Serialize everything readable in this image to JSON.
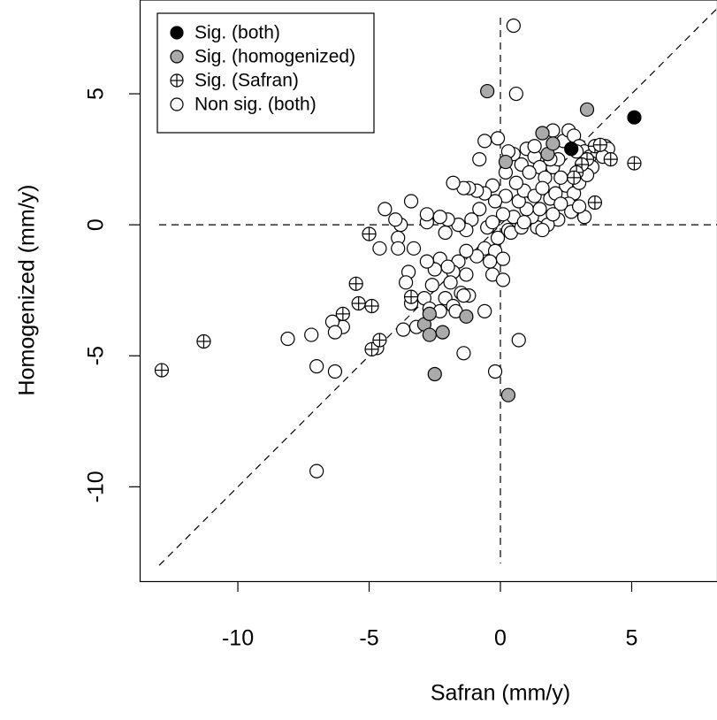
{
  "chart_data": {
    "type": "scatter",
    "xlabel": "Safran (mm/y)",
    "ylabel": "Homogenized (mm/y)",
    "xlim": [
      -13.74,
      8.25
    ],
    "ylim": [
      -13.6,
      8.58
    ],
    "xticks": [
      -10,
      -5,
      0,
      5
    ],
    "yticks": [
      -10,
      -5,
      0,
      5
    ],
    "hlines": [
      0
    ],
    "vlines": [
      0
    ],
    "abline": [
      0,
      1
    ],
    "legend": "topleft",
    "series": [
      {
        "name": "Sig. (both)",
        "color": "#000000",
        "marker": "circle",
        "x": [
          2.7,
          5.1
        ],
        "values": [
          2.9,
          4.1
        ]
      },
      {
        "name": "Sig. (homogenized)",
        "color": "#aaaaaa",
        "marker": "circle",
        "x": [
          -0.5,
          3.3,
          1.6,
          1.8,
          2.0,
          -2.9,
          -2.7,
          -2.7,
          -2.2,
          -1.3,
          -2.5,
          0.3,
          0.2
        ],
        "values": [
          5.1,
          4.4,
          3.5,
          2.7,
          3.1,
          -3.8,
          -3.4,
          -4.2,
          -4.1,
          -3.5,
          -5.7,
          -6.5,
          2.4
        ]
      },
      {
        "name": "Sig. (Safran)",
        "color": "#ffffff",
        "marker": "circle-plus",
        "x": [
          -12.9,
          -11.3,
          -5.5,
          -5.4,
          -6.0,
          -4.9,
          -5.0,
          -4.9,
          -4.6,
          -3.4,
          3.6,
          5.1,
          4.2,
          3.3,
          3.1,
          3.6,
          3.8,
          2.9,
          2.8
        ],
        "values": [
          -5.55,
          -4.45,
          -2.25,
          -3.0,
          -3.4,
          -3.1,
          -0.35,
          -4.75,
          -4.4,
          -2.75,
          0.85,
          2.35,
          2.5,
          2.5,
          2.3,
          3.0,
          3.05,
          2.0,
          1.8
        ]
      },
      {
        "name": "Non sig. (both)",
        "color": "#ffffff",
        "marker": "circle",
        "x": [
          0.5,
          0.6,
          -0.6,
          -0.1,
          -0.8,
          0.2,
          0.5,
          0.8,
          1.0,
          1.3,
          1.5,
          1.7,
          2.0,
          2.2,
          2.4,
          2.6,
          2.8,
          3.0,
          3.2,
          3.4,
          3.5,
          3.7,
          4.0,
          2.5,
          2.8,
          3.0,
          2.6,
          2.7,
          3.2,
          2.2,
          1.8,
          1.4,
          1.2,
          1.0,
          0.7,
          0.9,
          1.3,
          1.6,
          1.9,
          2.1,
          2.3,
          1.5,
          0.5,
          0.3,
          0.1,
          -0.1,
          0.4,
          0.8,
          0.6,
          0.2,
          -0.2,
          -0.3,
          -0.6,
          -0.9,
          -1.2,
          -1.4,
          -1.8,
          -0.8,
          -1.1,
          -1.3,
          -1.6,
          -2.0,
          -2.1,
          -2.3,
          -2.8,
          -2.8,
          -0.5,
          -0.6,
          -0.2,
          0.1,
          -0.4,
          -0.3,
          -0.9,
          -1.3,
          -1.6,
          -1.8,
          -1.3,
          -1.5,
          -1.2,
          -1.9,
          -2.1,
          -2.3,
          -2.0,
          -2.5,
          -2.6,
          -2.8,
          -2.9,
          -2.7,
          -2.3,
          -1.8,
          -1.4,
          -1.7,
          -0.6,
          -0.2,
          0.1,
          0.7,
          -1.4,
          -3.3,
          -3.4,
          -3.8,
          -3.9,
          -3.9,
          -3.5,
          -3.6,
          -3.4,
          -3.2,
          -3.7,
          -4.4,
          -4.6,
          -4.0,
          -4.7,
          -6.0,
          -6.4,
          -6.3,
          -7.2,
          -8.1,
          -7.0,
          -6.3,
          -7.0,
          -0.3,
          0.3,
          1.1,
          1.9,
          2.3,
          2.9,
          3.3,
          3.0,
          2.0,
          1.6,
          0.9,
          4.1,
          3.9,
          2.0,
          1.3
        ],
        "values": [
          7.6,
          5.0,
          3.2,
          3.3,
          2.5,
          2.0,
          2.7,
          2.3,
          2.9,
          2.6,
          2.2,
          1.8,
          2.2,
          2.5,
          3.2,
          3.6,
          3.4,
          3.0,
          2.8,
          2.6,
          2.2,
          2.8,
          3.0,
          1.5,
          1.2,
          1.6,
          0.8,
          0.5,
          0.3,
          0.2,
          0.0,
          -0.1,
          0.3,
          0.6,
          0.9,
          1.3,
          1.1,
          1.4,
          1.0,
          1.2,
          0.8,
          0.6,
          0.3,
          -0.2,
          0.4,
          -0.5,
          -0.3,
          -0.1,
          1.6,
          1.1,
          0.9,
          1.5,
          1.2,
          1.3,
          1.4,
          1.4,
          1.6,
          0.6,
          0.2,
          -0.2,
          0.0,
          0.2,
          -0.3,
          0.3,
          0.1,
          0.4,
          -0.1,
          -0.9,
          -1.0,
          -1.3,
          -1.4,
          -1.9,
          -1.2,
          -1.0,
          -1.4,
          -1.8,
          -1.9,
          -2.6,
          -2.7,
          -2.2,
          -2.8,
          -1.3,
          -1.6,
          -1.7,
          -2.3,
          -1.4,
          -2.8,
          -3.2,
          -3.3,
          -3.1,
          -2.7,
          -3.3,
          -3.3,
          -5.6,
          -2.1,
          -4.4,
          -4.9,
          -0.9,
          0.9,
          0.0,
          -0.5,
          -0.9,
          -1.8,
          -2.2,
          -3.0,
          -3.9,
          -4.0,
          0.6,
          -0.9,
          0.2,
          -4.7,
          -3.9,
          -3.7,
          -4.1,
          -4.2,
          -4.35,
          -5.4,
          -5.6,
          -9.4,
          0.1,
          2.8,
          2.0,
          2.5,
          1.8,
          2.8,
          1.9,
          0.7,
          0.4,
          -0.2,
          0.1,
          2.9,
          2.6,
          3.6,
          3.0
        ]
      }
    ]
  }
}
